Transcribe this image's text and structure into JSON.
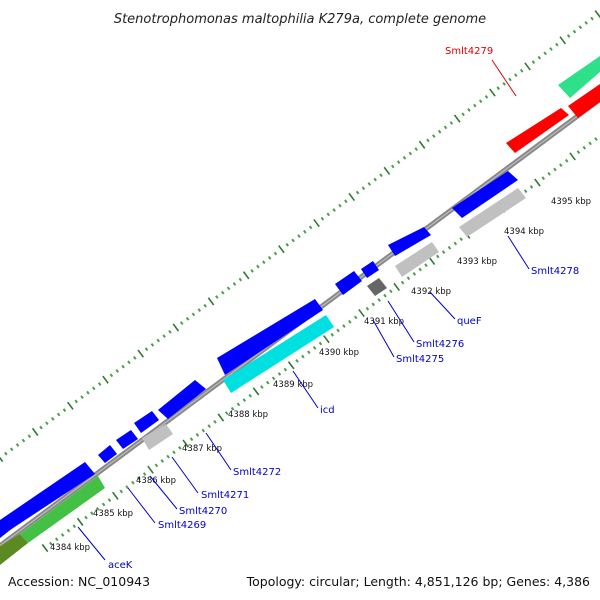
{
  "title": "Stenotrophomonas maltophilia K279a, complete genome",
  "accession": "Accession: NC_010943",
  "summary": "Topology: circular; Length: 4,851,126 bp; Genes: 4,386",
  "colors": {
    "backbone": "#888888",
    "tick_major": "#2f7a2f",
    "tick_minor": "#4aa04a",
    "cds_forward": "#0000ff",
    "trna": "#999999",
    "label_blue": "#0000cc",
    "label_red": "#dd0000"
  },
  "scale_labels": [
    "4384 kbp",
    "4385 kbp",
    "4386 kbp",
    "4387 kbp",
    "4388 kbp",
    "4389 kbp",
    "4390 kbp",
    "4391 kbp",
    "4392 kbp",
    "4393 kbp",
    "4394 kbp",
    "4395 kbp"
  ],
  "gene_labels": [
    "aceK",
    "Smlt4269",
    "Smlt4270",
    "Smlt4271",
    "Smlt4272",
    "icd",
    "Smlt4275",
    "Smlt4276",
    "queF",
    "Smlt4278",
    "Smlt4279"
  ]
}
